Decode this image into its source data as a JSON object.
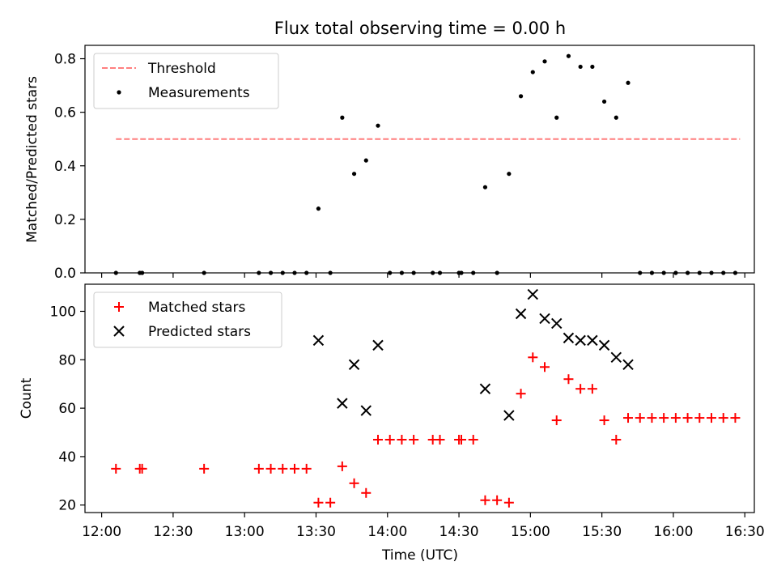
{
  "title": "Flux total observing time = 0.00 h",
  "chart_data": [
    {
      "type": "scatter",
      "title": "Flux total observing time = 0.00 h",
      "xlabel": "",
      "ylabel": "Matched/Predicted stars",
      "x_ticks": [
        "12:00",
        "12:30",
        "13:00",
        "13:30",
        "14:00",
        "14:30",
        "15:00",
        "15:30",
        "16:00",
        "16:30"
      ],
      "xlim": [
        "11:53",
        "16:34"
      ],
      "ylim": [
        0,
        0.85
      ],
      "y_ticks": [
        0.0,
        0.2,
        0.4,
        0.6,
        0.8
      ],
      "grid": false,
      "legend_position": "upper-left",
      "series": [
        {
          "name": "Threshold",
          "style": "dashed-line",
          "color": "#ff7f7f",
          "points": [
            [
              "12:06",
              0.5
            ],
            [
              "16:28",
              0.5
            ]
          ]
        },
        {
          "name": "Measurements",
          "style": "dot",
          "color": "#000000",
          "points": [
            [
              "12:06",
              0.0
            ],
            [
              "12:16",
              0.0
            ],
            [
              "12:17",
              0.0
            ],
            [
              "12:43",
              0.0
            ],
            [
              "13:06",
              0.0
            ],
            [
              "13:11",
              0.0
            ],
            [
              "13:16",
              0.0
            ],
            [
              "13:21",
              0.0
            ],
            [
              "13:26",
              0.0
            ],
            [
              "13:31",
              0.24
            ],
            [
              "13:36",
              0.0
            ],
            [
              "13:41",
              0.58
            ],
            [
              "13:46",
              0.37
            ],
            [
              "13:51",
              0.42
            ],
            [
              "13:56",
              0.55
            ],
            [
              "14:01",
              0.0
            ],
            [
              "14:06",
              0.0
            ],
            [
              "14:11",
              0.0
            ],
            [
              "14:19",
              0.0
            ],
            [
              "14:22",
              0.0
            ],
            [
              "14:30",
              0.0
            ],
            [
              "14:31",
              0.0
            ],
            [
              "14:36",
              0.0
            ],
            [
              "14:41",
              0.32
            ],
            [
              "14:46",
              0.0
            ],
            [
              "14:51",
              0.37
            ],
            [
              "14:56",
              0.66
            ],
            [
              "15:01",
              0.75
            ],
            [
              "15:06",
              0.79
            ],
            [
              "15:11",
              0.58
            ],
            [
              "15:16",
              0.81
            ],
            [
              "15:21",
              0.77
            ],
            [
              "15:26",
              0.77
            ],
            [
              "15:31",
              0.64
            ],
            [
              "15:36",
              0.58
            ],
            [
              "15:41",
              0.71
            ],
            [
              "15:46",
              0.0
            ],
            [
              "15:51",
              0.0
            ],
            [
              "15:56",
              0.0
            ],
            [
              "16:01",
              0.0
            ],
            [
              "16:06",
              0.0
            ],
            [
              "16:11",
              0.0
            ],
            [
              "16:16",
              0.0
            ],
            [
              "16:21",
              0.0
            ],
            [
              "16:26",
              0.0
            ]
          ]
        }
      ]
    },
    {
      "type": "scatter",
      "title": "",
      "xlabel": "Time (UTC)",
      "ylabel": "Count",
      "x_ticks": [
        "12:00",
        "12:30",
        "13:00",
        "13:30",
        "14:00",
        "14:30",
        "15:00",
        "15:30",
        "16:00",
        "16:30"
      ],
      "xlim": [
        "11:53",
        "16:34"
      ],
      "ylim": [
        16.9,
        111.2
      ],
      "y_ticks": [
        20,
        40,
        60,
        80,
        100
      ],
      "grid": false,
      "legend_position": "upper-left",
      "series": [
        {
          "name": "Matched stars",
          "style": "plus",
          "color": "#ff0000",
          "points": [
            [
              "12:06",
              35
            ],
            [
              "12:16",
              35
            ],
            [
              "12:17",
              35
            ],
            [
              "12:43",
              35
            ],
            [
              "13:06",
              35
            ],
            [
              "13:11",
              35
            ],
            [
              "13:16",
              35
            ],
            [
              "13:21",
              35
            ],
            [
              "13:26",
              35
            ],
            [
              "13:31",
              21
            ],
            [
              "13:36",
              21
            ],
            [
              "13:41",
              36
            ],
            [
              "13:46",
              29
            ],
            [
              "13:51",
              25
            ],
            [
              "13:56",
              47
            ],
            [
              "14:01",
              47
            ],
            [
              "14:06",
              47
            ],
            [
              "14:11",
              47
            ],
            [
              "14:19",
              47
            ],
            [
              "14:22",
              47
            ],
            [
              "14:30",
              47
            ],
            [
              "14:31",
              47
            ],
            [
              "14:36",
              47
            ],
            [
              "14:41",
              22
            ],
            [
              "14:46",
              22
            ],
            [
              "14:51",
              21
            ],
            [
              "14:56",
              66
            ],
            [
              "15:01",
              81
            ],
            [
              "15:06",
              77
            ],
            [
              "15:11",
              55
            ],
            [
              "15:16",
              72
            ],
            [
              "15:21",
              68
            ],
            [
              "15:26",
              68
            ],
            [
              "15:31",
              55
            ],
            [
              "15:36",
              47
            ],
            [
              "15:41",
              56
            ],
            [
              "15:46",
              56
            ],
            [
              "15:51",
              56
            ],
            [
              "15:56",
              56
            ],
            [
              "16:01",
              56
            ],
            [
              "16:06",
              56
            ],
            [
              "16:11",
              56
            ],
            [
              "16:16",
              56
            ],
            [
              "16:21",
              56
            ],
            [
              "16:26",
              56
            ]
          ]
        },
        {
          "name": "Predicted stars",
          "style": "x",
          "color": "#000000",
          "points": [
            [
              "13:31",
              88
            ],
            [
              "13:41",
              62
            ],
            [
              "13:46",
              78
            ],
            [
              "13:51",
              59
            ],
            [
              "13:56",
              86
            ],
            [
              "14:41",
              68
            ],
            [
              "14:51",
              57
            ],
            [
              "14:56",
              99
            ],
            [
              "15:01",
              107
            ],
            [
              "15:06",
              97
            ],
            [
              "15:11",
              95
            ],
            [
              "15:16",
              89
            ],
            [
              "15:21",
              88
            ],
            [
              "15:26",
              88
            ],
            [
              "15:31",
              86
            ],
            [
              "15:36",
              81
            ],
            [
              "15:41",
              78
            ]
          ]
        }
      ]
    }
  ]
}
